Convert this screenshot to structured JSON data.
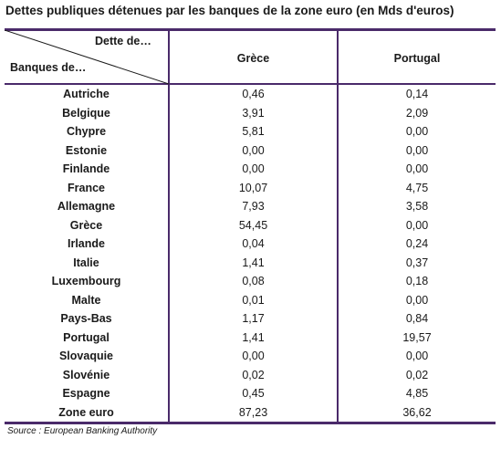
{
  "title": "Dettes publiques détenues par les banques de la zone euro (en Mds d'euros)",
  "header": {
    "corner_top": "Dette de…",
    "corner_bottom": "Banques de…",
    "col1": "Grèce",
    "col2": "Portugal"
  },
  "rows": [
    {
      "bank": "Autriche",
      "grece": "0,46",
      "portugal": "0,14"
    },
    {
      "bank": "Belgique",
      "grece": "3,91",
      "portugal": "2,09"
    },
    {
      "bank": "Chypre",
      "grece": "5,81",
      "portugal": "0,00"
    },
    {
      "bank": "Estonie",
      "grece": "0,00",
      "portugal": "0,00"
    },
    {
      "bank": "Finlande",
      "grece": "0,00",
      "portugal": "0,00"
    },
    {
      "bank": "France",
      "grece": "10,07",
      "portugal": "4,75"
    },
    {
      "bank": "Allemagne",
      "grece": "7,93",
      "portugal": "3,58"
    },
    {
      "bank": "Grèce",
      "grece": "54,45",
      "portugal": "0,00"
    },
    {
      "bank": "Irlande",
      "grece": "0,04",
      "portugal": "0,24"
    },
    {
      "bank": "Italie",
      "grece": "1,41",
      "portugal": "0,37"
    },
    {
      "bank": "Luxembourg",
      "grece": "0,08",
      "portugal": "0,18"
    },
    {
      "bank": "Malte",
      "grece": "0,01",
      "portugal": "0,00"
    },
    {
      "bank": "Pays-Bas",
      "grece": "1,17",
      "portugal": "0,84"
    },
    {
      "bank": "Portugal",
      "grece": "1,41",
      "portugal": "19,57"
    },
    {
      "bank": "Slovaquie",
      "grece": "0,00",
      "portugal": "0,00"
    },
    {
      "bank": "Slovénie",
      "grece": "0,02",
      "portugal": "0,02"
    },
    {
      "bank": "Espagne",
      "grece": "0,45",
      "portugal": "4,85"
    },
    {
      "bank": "Zone euro",
      "grece": "87,23",
      "portugal": "36,62"
    }
  ],
  "source": "Source : European Banking Authority",
  "colors": {
    "rule": "#4a2a6a"
  }
}
